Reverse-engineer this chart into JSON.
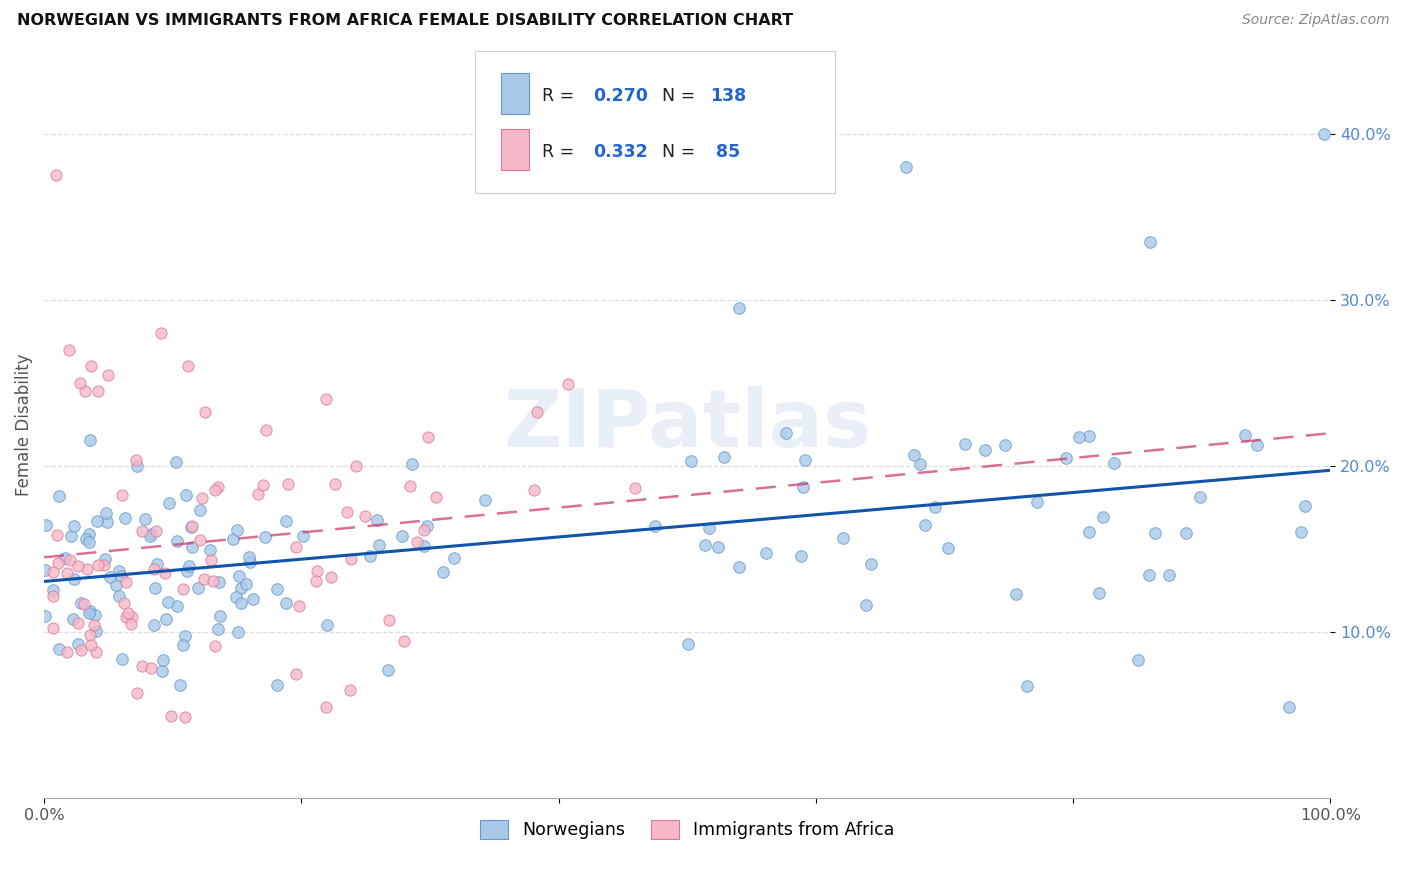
{
  "title": "NORWEGIAN VS IMMIGRANTS FROM AFRICA FEMALE DISABILITY CORRELATION CHART",
  "source": "Source: ZipAtlas.com",
  "ylabel": "Female Disability",
  "xlim": [
    0.0,
    1.0
  ],
  "ylim": [
    0.0,
    0.45
  ],
  "xticks": [
    0.0,
    0.2,
    0.4,
    0.6,
    0.8,
    1.0
  ],
  "xticklabels": [
    "0.0%",
    "",
    "",
    "",
    "",
    "100.0%"
  ],
  "yticks": [
    0.1,
    0.2,
    0.3,
    0.4
  ],
  "yticklabels": [
    "10.0%",
    "20.0%",
    "30.0%",
    "40.0%"
  ],
  "norwegian_color": "#a8c8e8",
  "african_color": "#f4b8c8",
  "norwegian_edge": "#6699cc",
  "african_edge": "#dd7799",
  "trend_norwegian_color": "#1155aa",
  "trend_african_color": "#cc3366",
  "legend_r_n_color": "#2266cc",
  "R_norwegian": 0.27,
  "N_norwegian": 138,
  "R_african": 0.332,
  "N_african": 85,
  "watermark": "ZIPatlas",
  "legend_labels": [
    "Norwegians",
    "Immigrants from Africa"
  ],
  "grid_color": "#dddddd",
  "spine_color": "#aaaaaa"
}
